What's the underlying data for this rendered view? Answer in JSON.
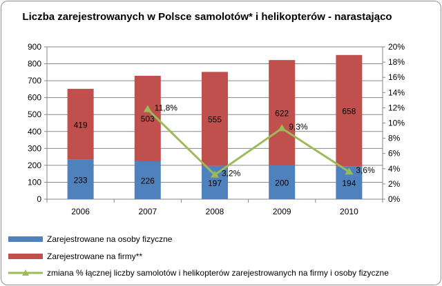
{
  "chart_data": {
    "type": "bar",
    "title": "Liczba zarejestrowanych w Polsce samolotów* i helikopterów - narastająco",
    "categories": [
      "2006",
      "2007",
      "2008",
      "2009",
      "2010"
    ],
    "series": [
      {
        "name": "Zarejestrowane na osoby fizyczne",
        "values": [
          233,
          226,
          197,
          200,
          194
        ],
        "color": "#4f81bd",
        "axis": "left",
        "stack": true
      },
      {
        "name": "Zarejestrowane na firmy**",
        "values": [
          419,
          503,
          555,
          622,
          658
        ],
        "color": "#c0504d",
        "axis": "left",
        "stack": true
      },
      {
        "name": "zmiana % łącznej liczby samolotów i helikopterów zarejestrowanych na firmy i osoby fizyczne",
        "type": "line",
        "x": [
          "2007",
          "2008",
          "2009",
          "2010"
        ],
        "values": [
          11.8,
          3.2,
          9.3,
          3.6
        ],
        "labels": [
          "11,8%",
          "3,2%",
          "9,3%",
          "3,6%"
        ],
        "color": "#9bbb59",
        "axis": "right"
      }
    ],
    "ylim_left": [
      0,
      900
    ],
    "yticks_left": [
      "0",
      "100",
      "200",
      "300",
      "400",
      "500",
      "600",
      "700",
      "800",
      "900"
    ],
    "ylim_right": [
      0,
      20
    ],
    "yticks_right": [
      "0%",
      "2%",
      "4%",
      "6%",
      "8%",
      "10%",
      "12%",
      "14%",
      "16%",
      "18%",
      "20%"
    ],
    "grid": true,
    "legend": "bottom"
  }
}
